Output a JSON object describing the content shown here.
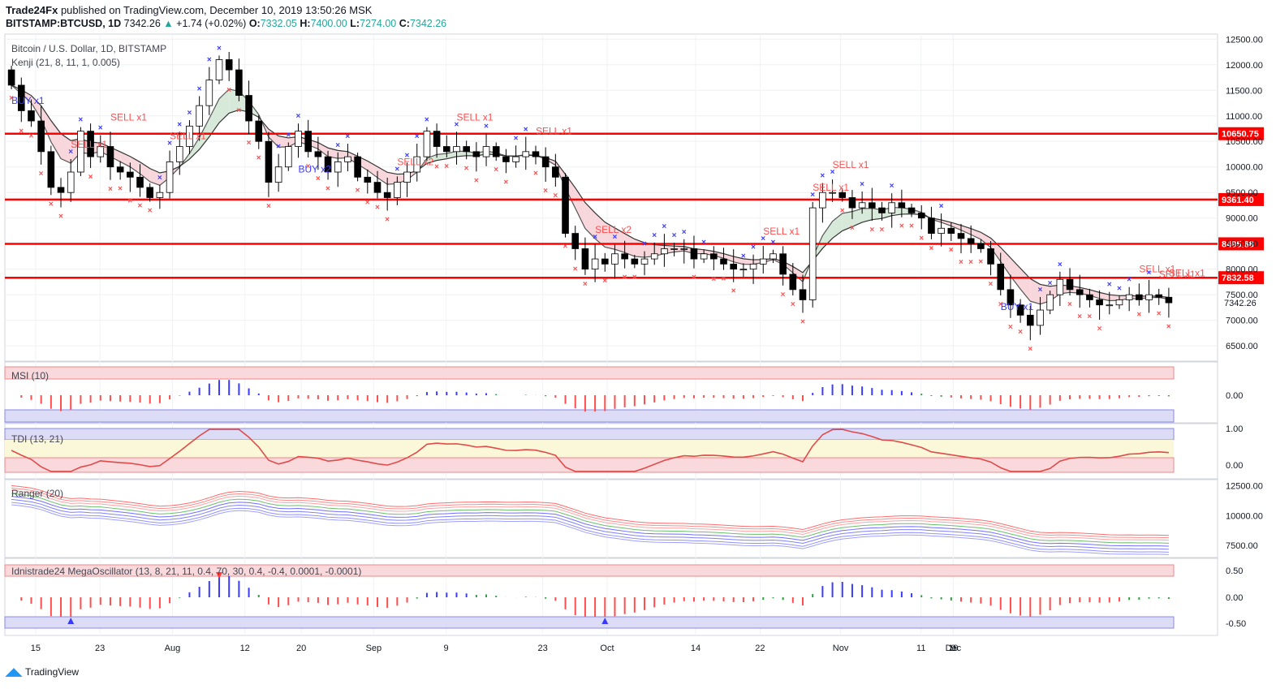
{
  "header": {
    "publisher": "Trade24Fx",
    "published_text": "published on TradingView.com, December 10, 2019 13:50:26 MSK",
    "symbol": "BITSTAMP:BTCUSD, 1D",
    "last": "7342.26",
    "change": "+1.74 (+0.02%)",
    "o_label": "O:",
    "o_value": "7332.05",
    "h_label": "H:",
    "h_value": "7400.00",
    "l_label": "L:",
    "l_value": "7274.00",
    "c_label": "C:",
    "c_value": "7342.26"
  },
  "panes": {
    "main_title": "Bitcoin / U.S. Dollar, 1D, BITSTAMP",
    "main_indicator": "Kenji (21, 8, 11, 1, 0.005)",
    "msi": "MSI (10)",
    "tdi": "TDI (13, 21)",
    "ranger": "Ranger (20)",
    "mega": "Idnistrade24 MegaOscillator (13, 8, 21, 11, 0.4, 70, 30, 0.4, -0.4, 0.0001, -0.0001)"
  },
  "footer": {
    "brand": "TradingView"
  },
  "colors": {
    "up": "#ffffff",
    "down": "#000000",
    "hline": "#ff0000",
    "buy": "#3b3bff",
    "sell": "#ff4d4d",
    "green": "#2e9e3e"
  },
  "chart_data": {
    "type": "candlestick",
    "title": "Bitcoin / U.S. Dollar, 1D, BITSTAMP",
    "ylim": [
      6200,
      12600
    ],
    "y_ticks": [
      "12500.00",
      "12000.00",
      "11500.00",
      "11000.00",
      "10500.00",
      "10000.00",
      "9500.00",
      "9000.00",
      "8500.00",
      "8000.00",
      "7500.00",
      "7000.00",
      "6500.00"
    ],
    "x_ticks": [
      "15",
      "23",
      "Aug",
      "12",
      "20",
      "Sep",
      "9",
      "23",
      "Oct",
      "14",
      "22",
      "Nov",
      "11",
      "19",
      "Dec",
      "9"
    ],
    "horizontal_levels": [
      "10650.75",
      "9361.40",
      "8495.68",
      "7832.58"
    ],
    "last_price": "7342.26",
    "close": [
      11600,
      11100,
      10900,
      10300,
      9600,
      9500,
      9900,
      10700,
      10200,
      10400,
      10000,
      9900,
      9800,
      9600,
      9400,
      9500,
      10100,
      10400,
      10800,
      11200,
      11700,
      12100,
      11900,
      11400,
      10900,
      10500,
      9700,
      10000,
      10400,
      10700,
      10300,
      10200,
      9900,
      10100,
      10200,
      9800,
      9700,
      9500,
      9400,
      9700,
      9900,
      10200,
      10700,
      10400,
      10300,
      10400,
      10300,
      10200,
      10400,
      10200,
      10100,
      10200,
      10300,
      10200,
      10000,
      9800,
      8700,
      8400,
      8000,
      8200,
      8100,
      8300,
      8200,
      8100,
      8200,
      8300,
      8400,
      8400,
      8400,
      8200,
      8300,
      8200,
      8100,
      8000,
      8000,
      8100,
      8200,
      8300,
      7900,
      7600,
      7400,
      9200,
      9500,
      9500,
      9400,
      9200,
      9300,
      9200,
      9100,
      9300,
      9200,
      9100,
      9000,
      8700,
      8800,
      8700,
      8600,
      8500,
      8400,
      8100,
      7600,
      7300,
      7100,
      6900,
      7200,
      7500,
      7800,
      7600,
      7500,
      7400,
      7300,
      7300,
      7400,
      7500,
      7400,
      7500,
      7450,
      7342
    ],
    "series": [
      {
        "name": "MSI (10)"
      },
      {
        "name": "TDI (13, 21)",
        "ylim": [
          0,
          1
        ]
      },
      {
        "name": "Ranger (20)",
        "ylim": [
          6500,
          13000
        ],
        "y_ticks": [
          "12500.00",
          "10000.00",
          "7500.00"
        ]
      },
      {
        "name": "Idnistrade24 MegaOscillator",
        "y_ticks": [
          "0.50",
          "0.00",
          "-0.50"
        ]
      }
    ],
    "annotations": [
      "BUY x1",
      "BUY x2",
      "BUY x1",
      "SELL x1",
      "SELL x1",
      "SELL x1",
      "SELL x2",
      "SELL x1",
      "SELL x1",
      "SELL x2",
      "SELL x1",
      "SELL x1",
      "SELL x1",
      "SELL x1",
      "SELL x1",
      "SELL x1"
    ]
  }
}
